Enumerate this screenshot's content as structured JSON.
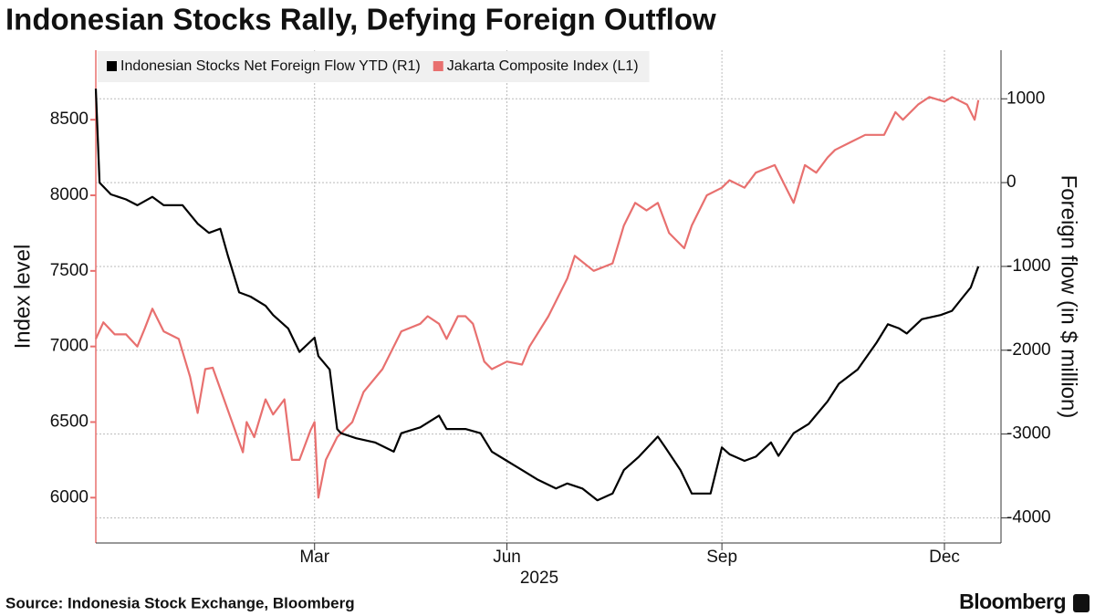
{
  "chart_data": {
    "type": "line",
    "title": "Indonesian Stocks Rally, Defying Foreign Outflow",
    "ylabel": "Index level",
    "y2label": "Foreign flow (in $ million)",
    "xlabel": "2025",
    "source": "Source: Indonesia Stock Exchange, Bloomberg",
    "brand": "Bloomberg",
    "xlim": [
      0,
      240
    ],
    "xticks": [
      {
        "value": 58,
        "label": "Mar"
      },
      {
        "value": 109,
        "label": "Jun"
      },
      {
        "value": 166,
        "label": "Sep"
      },
      {
        "value": 225,
        "label": "Dec"
      }
    ],
    "ylim": [
      5700,
      8960
    ],
    "yticks": [
      6000,
      6500,
      7000,
      7500,
      8000,
      8500
    ],
    "y2lim": [
      -4300,
      1580
    ],
    "y2ticks": [
      -4000,
      -3000,
      -2000,
      -1000,
      0,
      1000
    ],
    "grid": true,
    "legend": "top",
    "series": [
      {
        "name": "Indonesian Stocks Net Foreign Flow YTD (R1)",
        "color": "#000000",
        "axis": "y2",
        "x": [
          0,
          1,
          4,
          8,
          11,
          15,
          18,
          23,
          27,
          30,
          33,
          35,
          38,
          41,
          45,
          47,
          51,
          54,
          58,
          59,
          62,
          64,
          65,
          69,
          74,
          79,
          81,
          86,
          91,
          93,
          98,
          102,
          105,
          109,
          113,
          117,
          122,
          125,
          129,
          133,
          137,
          140,
          144,
          149,
          151,
          155,
          158,
          163,
          166,
          168,
          172,
          175,
          179,
          181,
          185,
          189,
          194,
          197,
          202,
          207,
          210,
          213,
          215,
          219,
          224,
          227,
          230,
          232,
          234
        ],
        "values": [
          1120,
          0,
          -140,
          -200,
          -270,
          -170,
          -270,
          -270,
          -490,
          -600,
          -550,
          -870,
          -1310,
          -1360,
          -1470,
          -1580,
          -1740,
          -2020,
          -1850,
          -2070,
          -2230,
          -2940,
          -2990,
          -3050,
          -3100,
          -3210,
          -2990,
          -2920,
          -2780,
          -2940,
          -2940,
          -2990,
          -3210,
          -3320,
          -3430,
          -3540,
          -3650,
          -3590,
          -3650,
          -3790,
          -3710,
          -3430,
          -3270,
          -3030,
          -3160,
          -3430,
          -3710,
          -3710,
          -3160,
          -3240,
          -3320,
          -3270,
          -3100,
          -3260,
          -2990,
          -2880,
          -2610,
          -2400,
          -2230,
          -1910,
          -1690,
          -1740,
          -1800,
          -1630,
          -1580,
          -1530,
          -1360,
          -1250,
          -1000
        ]
      },
      {
        "name": "Jakarta Composite Index (L1)",
        "color": "#e8706f",
        "x": [
          0,
          2,
          5,
          8,
          11,
          13,
          15,
          18,
          22,
          25,
          27,
          29,
          31,
          34,
          39,
          40,
          42,
          45,
          47,
          50,
          52,
          54,
          57,
          58,
          59,
          61,
          64,
          68,
          71,
          76,
          81,
          86,
          88,
          91,
          93,
          96,
          98,
          100,
          103,
          105,
          109,
          113,
          115,
          120,
          125,
          127,
          132,
          137,
          140,
          143,
          146,
          149,
          152,
          156,
          158,
          162,
          166,
          168,
          172,
          175,
          180,
          183,
          185,
          188,
          191,
          194,
          196,
          200,
          204,
          209,
          212,
          214,
          218,
          221,
          225,
          227,
          231,
          233,
          234
        ],
        "values": [
          7050,
          7160,
          7080,
          7080,
          7000,
          7120,
          7250,
          7100,
          7050,
          6800,
          6560,
          6850,
          6860,
          6650,
          6300,
          6500,
          6400,
          6650,
          6550,
          6650,
          6250,
          6250,
          6450,
          6500,
          6000,
          6250,
          6400,
          6500,
          6700,
          6850,
          7100,
          7150,
          7200,
          7150,
          7050,
          7200,
          7200,
          7150,
          6900,
          6850,
          6900,
          6880,
          7000,
          7200,
          7450,
          7600,
          7500,
          7550,
          7800,
          7950,
          7900,
          7950,
          7750,
          7650,
          7800,
          8000,
          8050,
          8100,
          8050,
          8150,
          8200,
          8050,
          7950,
          8200,
          8150,
          8250,
          8300,
          8350,
          8400,
          8400,
          8550,
          8500,
          8600,
          8650,
          8620,
          8650,
          8600,
          8500,
          8630
        ]
      }
    ]
  }
}
